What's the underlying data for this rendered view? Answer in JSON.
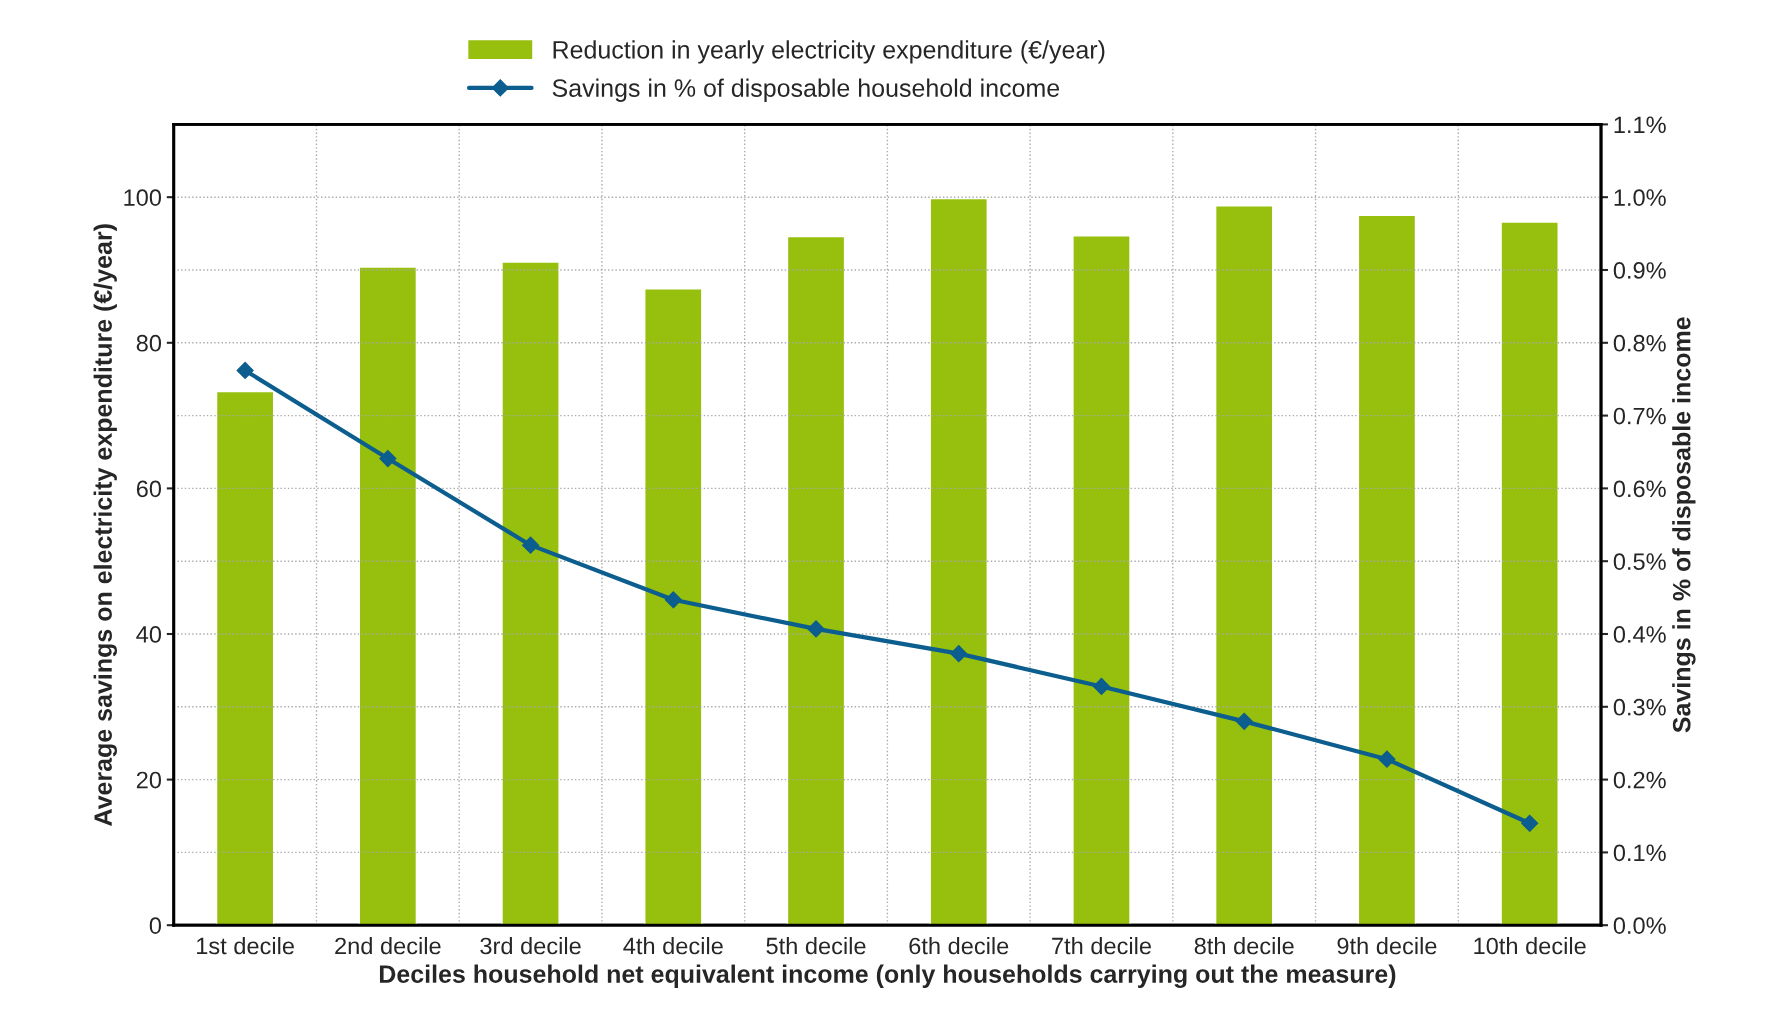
{
  "chart_data": {
    "type": "bar",
    "xlabel": "Deciles household net equivalent income (only households carrying out the measure)",
    "ylabel": "Average savings on electricity expenditure (€/year)",
    "y2label": "Savings in % of disposable income",
    "categories": [
      "1st decile",
      "2nd decile",
      "3rd decile",
      "4th decile",
      "5th decile",
      "6th decile",
      "7th decile",
      "8th decile",
      "9th decile",
      "10th decile"
    ],
    "series": [
      {
        "name": "Reduction in yearly electricity expenditure (€/year)",
        "color": "#97bf0d",
        "values": [
          73.3,
          90.4,
          91.1,
          87.4,
          94.6,
          99.8,
          94.7,
          98.8,
          97.5,
          96.6
        ]
      },
      {
        "name": "Savings in % of disposable household income",
        "type": "line",
        "axis": "y2",
        "color": "#0b5e8e",
        "marker": "diamond",
        "line_style": "solid",
        "values": [
          0.762,
          0.641,
          0.522,
          0.447,
          0.407,
          0.373,
          0.328,
          0.28,
          0.228,
          0.14
        ]
      }
    ],
    "ylim": [
      0,
      110
    ],
    "yticks": [
      0,
      20,
      40,
      60,
      80,
      100
    ],
    "y2lim": [
      0,
      1.1
    ],
    "y2ticks": [
      {
        "value": 0,
        "label": "0.0%"
      },
      {
        "value": 0.1,
        "label": "0.1%"
      },
      {
        "value": 0.2,
        "label": "0.2%"
      },
      {
        "value": 0.3,
        "label": "0.3%"
      },
      {
        "value": 0.4,
        "label": "0.4%"
      },
      {
        "value": 0.5,
        "label": "0.5%"
      },
      {
        "value": 0.6,
        "label": "0.6%"
      },
      {
        "value": 0.7,
        "label": "0.7%"
      },
      {
        "value": 0.8,
        "label": "0.8%"
      },
      {
        "value": 0.9,
        "label": "0.9%"
      },
      {
        "value": 1.0,
        "label": "1.0%"
      },
      {
        "value": 1.1,
        "label": "1.1%"
      }
    ],
    "grid": true,
    "legend": "top"
  }
}
